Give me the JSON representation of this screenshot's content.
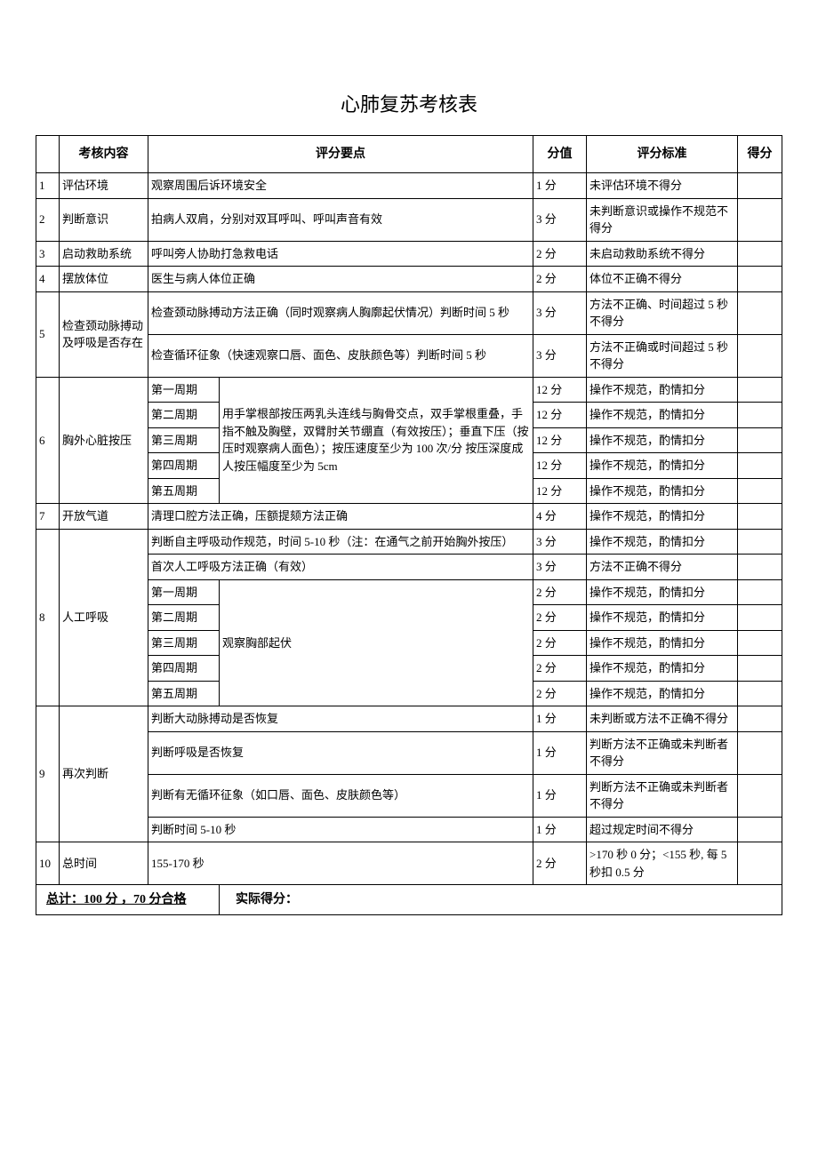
{
  "title": "心肺复苏考核表",
  "headers": {
    "content": "考核内容",
    "points": "评分要点",
    "score": "分值",
    "standard": "评分标准",
    "got": "得分"
  },
  "rows": {
    "r1": {
      "idx": "1",
      "content": "评估环境",
      "points": "观察周围后诉环境安全",
      "score": "1 分",
      "std": "未评估环境不得分"
    },
    "r2": {
      "idx": "2",
      "content": "判断意识",
      "points": "拍病人双肩，分别对双耳呼叫、呼叫声音有效",
      "score": "3 分",
      "std": "未判断意识或操作不规范不得分"
    },
    "r3": {
      "idx": "3",
      "content": "启动救助系统",
      "points": "呼叫旁人协助打急救电话",
      "score": "2 分",
      "std": "未启动救助系统不得分"
    },
    "r4": {
      "idx": "4",
      "content": "摆放体位",
      "points": "医生与病人体位正确",
      "score": "2 分",
      "std": "体位不正确不得分"
    },
    "r5": {
      "idx": "5",
      "content": "检查颈动脉搏动及呼吸是否存在",
      "a_points": "检查颈动脉搏动方法正确（同时观察病人胸廓起伏情况）判断时间 5 秒",
      "a_score": "3 分",
      "a_std": "方法不正确、时间超过 5 秒不得分",
      "b_points": "检查循环征象（快速观察口唇、面色、皮肤颜色等）判断时间 5 秒",
      "b_score": "3 分",
      "b_std": "方法不正确或时间超过 5 秒不得分"
    },
    "r6": {
      "idx": "6",
      "content": "胸外心脏按压",
      "c1": "第一周期",
      "c2": "第二周期",
      "c3": "第三周期",
      "c4": "第四周期",
      "c5": "第五周期",
      "desc": "用手掌根部按压两乳头连线与胸骨交点，双手掌根重叠，手指不触及胸壁，双臂肘关节绷直（有效按压）；垂直下压（按压时观察病人面色）；按压速度至少为 100 次/分 按压深度成人按压幅度至少为 5cm",
      "s": "12 分",
      "std": "操作不规范，酌情扣分"
    },
    "r7": {
      "idx": "7",
      "content": "开放气道",
      "points": "清理口腔方法正确，压额提颏方法正确",
      "score": "4 分",
      "std": "操作不规范，酌情扣分"
    },
    "r8": {
      "idx": "8",
      "content": "人工呼吸",
      "a_points": "判断自主呼吸动作规范，时间 5-10 秒（注：在通气之前开始胸外按压）",
      "a_score": "3 分",
      "a_std": "操作不规范，酌情扣分",
      "b_points": "首次人工呼吸方法正确（有效）",
      "b_score": "3 分",
      "b_std": "方法不正确不得分",
      "c1": "第一周期",
      "c2": "第二周期",
      "c3": "第三周期",
      "c4": "第四周期",
      "c5": "第五周期",
      "desc": "观察胸部起伏",
      "s": "2 分",
      "std": "操作不规范，酌情扣分"
    },
    "r9": {
      "idx": "9",
      "content": "再次判断",
      "a": "判断大动脉搏动是否恢复",
      "as": "1 分",
      "astd": "未判断或方法不正确不得分",
      "b": "判断呼吸是否恢复",
      "bs": "1 分",
      "bstd": "判断方法不正确或未判断者不得分",
      "c": "判断有无循环征象（如口唇、面色、皮肤颜色等）",
      "cs": "1 分",
      "cstd": "判断方法不正确或未判断者不得分",
      "d": "判断时间 5-10 秒",
      "ds": "1 分",
      "dstd": "超过规定时间不得分"
    },
    "r10": {
      "idx": "10",
      "content": "总时间",
      "points": "155-170 秒",
      "score": "2 分",
      "std": ">170 秒 0 分；<155 秒, 每 5 秒扣 0.5 分"
    }
  },
  "footer": {
    "total": "总计：100 分 ，70 分合格",
    "actual": "实际得分："
  }
}
